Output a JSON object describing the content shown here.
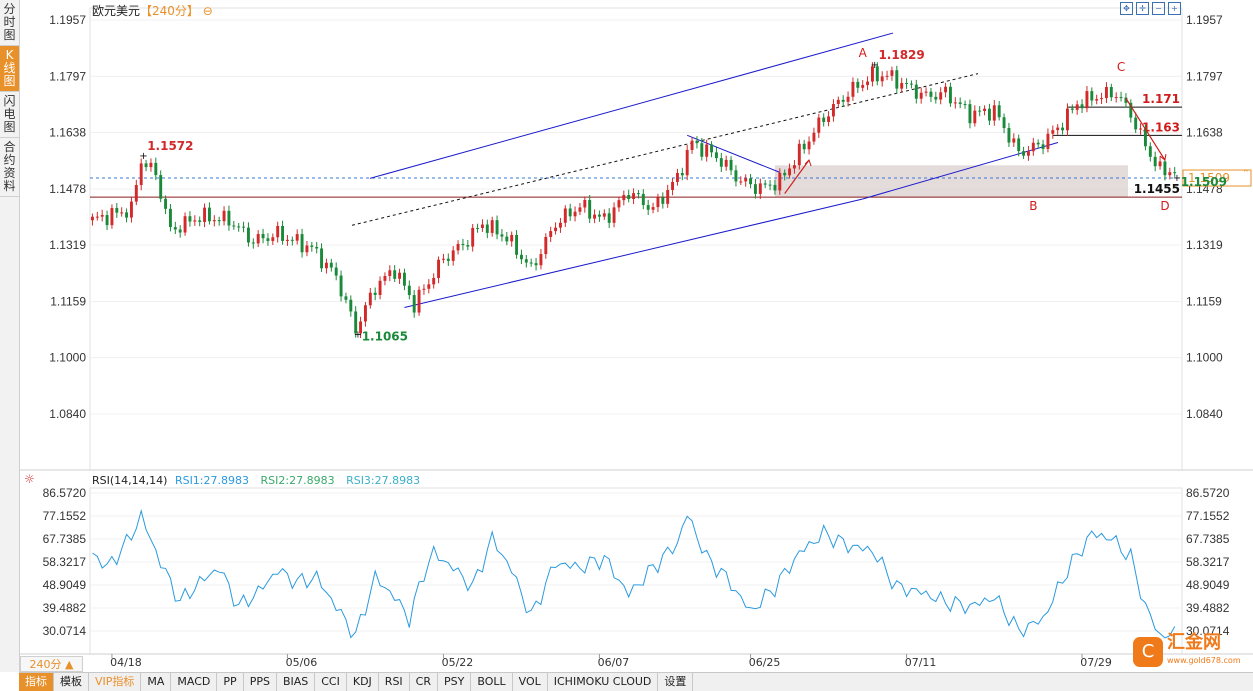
{
  "left_tabs": [
    "分时图",
    "K线图",
    "闪电图",
    "合约资料"
  ],
  "header": {
    "title": "欧元美元",
    "period": "【240分】",
    "icon": "circle-minus-icon"
  },
  "period_button": "240分 ▲",
  "bottom_tabs": [
    "指标",
    "模板",
    "VIP指标",
    "MA",
    "MACD",
    "PP",
    "PPS",
    "BIAS",
    "CCI",
    "KDJ",
    "RSI",
    "CR",
    "PSY",
    "BOLL",
    "VOL",
    "ICHIMOKU CLOUD",
    "设置"
  ],
  "rsi_header": {
    "name": "RSI(14,14,14)",
    "rsi1": "RSI1:27.8983",
    "rsi2": "RSI2:27.8983",
    "rsi3": "RSI3:27.8983"
  },
  "logo": {
    "name": "汇金网",
    "url": "www.gold678.com"
  },
  "colors": {
    "up": "#d22a2a",
    "down": "#1a8a3a",
    "channel": "#1a1acc",
    "rsi": "#2a9adf",
    "zone": "#d8cccc",
    "accent": "#e8902a"
  },
  "chart_data": {
    "type": "candlestick",
    "instrument": "欧元美元",
    "y_ticks": [
      "1.1957",
      "1.1797",
      "1.1638",
      "1.1478",
      "1.1319",
      "1.1159",
      "1.1000",
      "1.0840"
    ],
    "ylim": [
      1.076,
      1.2
    ],
    "x_ticks": [
      "04/18",
      "05/06",
      "05/22",
      "06/07",
      "06/25",
      "07/11",
      "07/29"
    ],
    "current_price": "1.1509",
    "price_labels": [
      {
        "text": "1.1572",
        "price": 1.1572,
        "kind": "high"
      },
      {
        "text": "1.1065",
        "price": 1.1065,
        "kind": "low"
      },
      {
        "text": "1.1829",
        "price": 1.1829,
        "kind": "high"
      },
      {
        "text": "1.1509",
        "price": 1.1509,
        "kind": "low"
      }
    ],
    "horizontal_levels": [
      {
        "text": "1.171",
        "price": 1.171
      },
      {
        "text": "1.163",
        "price": 1.163
      },
      {
        "text": "1.1455",
        "price": 1.1455
      }
    ],
    "wave_labels": [
      "A",
      "B",
      "C",
      "D"
    ],
    "support_zone": [
      1.1455,
      1.1545
    ],
    "anchors": [
      {
        "i": 0,
        "c": 1.139
      },
      {
        "i": 8,
        "c": 1.142
      },
      {
        "i": 10,
        "c": 1.156
      },
      {
        "i": 13,
        "c": 1.152
      },
      {
        "i": 16,
        "c": 1.136
      },
      {
        "i": 22,
        "c": 1.14
      },
      {
        "i": 28,
        "c": 1.139
      },
      {
        "i": 33,
        "c": 1.133
      },
      {
        "i": 38,
        "c": 1.135
      },
      {
        "i": 45,
        "c": 1.131
      },
      {
        "i": 50,
        "c": 1.123
      },
      {
        "i": 54,
        "c": 1.108
      },
      {
        "i": 58,
        "c": 1.12
      },
      {
        "i": 62,
        "c": 1.125
      },
      {
        "i": 66,
        "c": 1.115
      },
      {
        "i": 72,
        "c": 1.128
      },
      {
        "i": 76,
        "c": 1.132
      },
      {
        "i": 80,
        "c": 1.138
      },
      {
        "i": 85,
        "c": 1.134
      },
      {
        "i": 90,
        "c": 1.125
      },
      {
        "i": 95,
        "c": 1.138
      },
      {
        "i": 100,
        "c": 1.143
      },
      {
        "i": 105,
        "c": 1.139
      },
      {
        "i": 110,
        "c": 1.147
      },
      {
        "i": 115,
        "c": 1.142
      },
      {
        "i": 120,
        "c": 1.151
      },
      {
        "i": 123,
        "c": 1.161
      },
      {
        "i": 128,
        "c": 1.157
      },
      {
        "i": 133,
        "c": 1.15
      },
      {
        "i": 137,
        "c": 1.148
      },
      {
        "i": 141,
        "c": 1.15
      },
      {
        "i": 145,
        "c": 1.158
      },
      {
        "i": 150,
        "c": 1.168
      },
      {
        "i": 155,
        "c": 1.175
      },
      {
        "i": 160,
        "c": 1.18
      },
      {
        "i": 163,
        "c": 1.18
      },
      {
        "i": 167,
        "c": 1.177
      },
      {
        "i": 171,
        "c": 1.174
      },
      {
        "i": 175,
        "c": 1.175
      },
      {
        "i": 180,
        "c": 1.169
      },
      {
        "i": 185,
        "c": 1.17
      },
      {
        "i": 190,
        "c": 1.158
      },
      {
        "i": 194,
        "c": 1.16
      },
      {
        "i": 198,
        "c": 1.165
      },
      {
        "i": 202,
        "c": 1.172
      },
      {
        "i": 206,
        "c": 1.174
      },
      {
        "i": 210,
        "c": 1.175
      },
      {
        "i": 213,
        "c": 1.169
      },
      {
        "i": 216,
        "c": 1.16
      },
      {
        "i": 219,
        "c": 1.153
      },
      {
        "i": 222,
        "c": 1.153
      }
    ],
    "rsi": {
      "name": "RSI(14,14,14)",
      "y_ticks": [
        "86.5720",
        "77.1552",
        "67.7385",
        "58.3217",
        "48.9049",
        "39.4882",
        "30.0714"
      ],
      "ylim": [
        23.0,
        89.0
      ],
      "anchors": [
        {
          "i": 0,
          "v": 62
        },
        {
          "i": 3,
          "v": 56
        },
        {
          "i": 7,
          "v": 66
        },
        {
          "i": 10,
          "v": 77
        },
        {
          "i": 14,
          "v": 58
        },
        {
          "i": 18,
          "v": 42
        },
        {
          "i": 22,
          "v": 50
        },
        {
          "i": 26,
          "v": 56
        },
        {
          "i": 30,
          "v": 40
        },
        {
          "i": 34,
          "v": 46
        },
        {
          "i": 38,
          "v": 55
        },
        {
          "i": 42,
          "v": 50
        },
        {
          "i": 46,
          "v": 52
        },
        {
          "i": 50,
          "v": 40
        },
        {
          "i": 54,
          "v": 28
        },
        {
          "i": 58,
          "v": 52
        },
        {
          "i": 62,
          "v": 44
        },
        {
          "i": 65,
          "v": 35
        },
        {
          "i": 68,
          "v": 54
        },
        {
          "i": 70,
          "v": 62
        },
        {
          "i": 74,
          "v": 56
        },
        {
          "i": 78,
          "v": 48
        },
        {
          "i": 82,
          "v": 68
        },
        {
          "i": 86,
          "v": 55
        },
        {
          "i": 90,
          "v": 36
        },
        {
          "i": 95,
          "v": 58
        },
        {
          "i": 100,
          "v": 56
        },
        {
          "i": 105,
          "v": 60
        },
        {
          "i": 110,
          "v": 45
        },
        {
          "i": 115,
          "v": 56
        },
        {
          "i": 120,
          "v": 66
        },
        {
          "i": 122,
          "v": 78
        },
        {
          "i": 126,
          "v": 60
        },
        {
          "i": 130,
          "v": 52
        },
        {
          "i": 135,
          "v": 38
        },
        {
          "i": 140,
          "v": 48
        },
        {
          "i": 145,
          "v": 62
        },
        {
          "i": 150,
          "v": 70
        },
        {
          "i": 155,
          "v": 65
        },
        {
          "i": 160,
          "v": 63
        },
        {
          "i": 165,
          "v": 48
        },
        {
          "i": 170,
          "v": 46
        },
        {
          "i": 175,
          "v": 42
        },
        {
          "i": 180,
          "v": 40
        },
        {
          "i": 185,
          "v": 44
        },
        {
          "i": 190,
          "v": 30
        },
        {
          "i": 195,
          "v": 35
        },
        {
          "i": 200,
          "v": 55
        },
        {
          "i": 205,
          "v": 70
        },
        {
          "i": 209,
          "v": 68
        },
        {
          "i": 213,
          "v": 60
        },
        {
          "i": 216,
          "v": 40
        },
        {
          "i": 219,
          "v": 28
        },
        {
          "i": 222,
          "v": 29
        }
      ]
    }
  }
}
